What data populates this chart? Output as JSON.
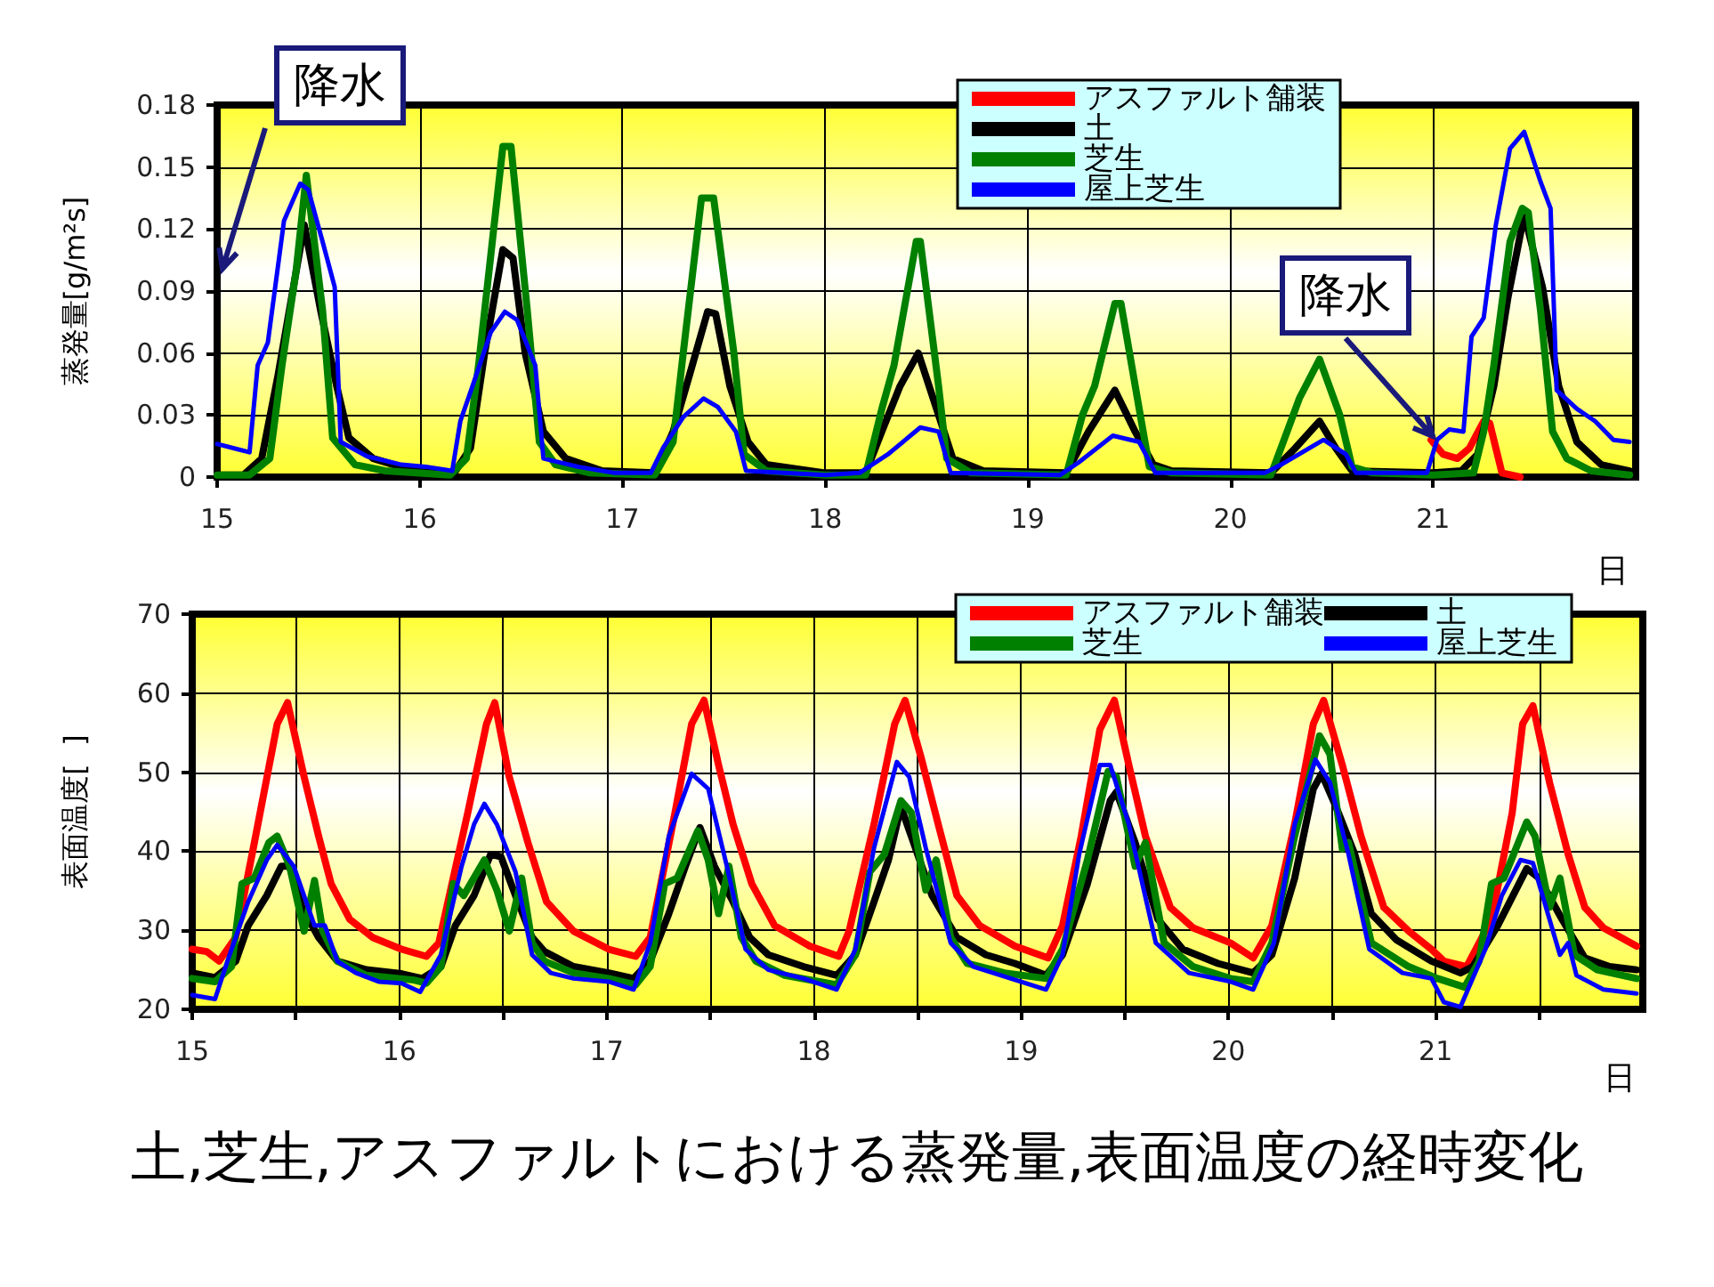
{
  "chart_data": [
    {
      "type": "line",
      "ylabel": "蒸発量[g/m²s]",
      "xlabel": "日",
      "xlim": [
        15,
        22
      ],
      "xticks": [
        15,
        16,
        17,
        18,
        19,
        20,
        21
      ],
      "ylim": [
        0,
        0.18
      ],
      "yticks": [
        0,
        0.03,
        0.06,
        0.09,
        0.12,
        0.15,
        0.18
      ],
      "grid": true,
      "legend": "top right",
      "marker": "none",
      "annotations": [
        "降水",
        {
          "text": "降水",
          "x": 21,
          "y": 0.02
        }
      ],
      "series": [
        {
          "name": "アスファルト舗装",
          "color": "#ff0000",
          "x": [
            20.99,
            21.05,
            21.12,
            21.18,
            21.25,
            21.28,
            21.34,
            21.43
          ],
          "values": [
            0.018,
            0.011,
            0.009,
            0.014,
            0.027,
            0.026,
            0.002,
            0
          ]
        },
        {
          "name": "土",
          "color": "#000000",
          "x": [
            15,
            15.13,
            15.22,
            15.3,
            15.43,
            15.51,
            15.59,
            15.65,
            15.77,
            15.97,
            16.17,
            16.25,
            16.32,
            16.41,
            16.46,
            16.52,
            16.61,
            16.72,
            16.9,
            17.16,
            17.25,
            17.33,
            17.42,
            17.46,
            17.53,
            17.62,
            17.71,
            18.0,
            18.2,
            18.28,
            18.37,
            18.46,
            18.55,
            18.63,
            18.78,
            19.19,
            19.3,
            19.43,
            19.53,
            19.62,
            19.71,
            20.2,
            20.32,
            20.44,
            20.52,
            20.6,
            21.0,
            21.14,
            21.22,
            21.3,
            21.37,
            21.45,
            21.54,
            21.62,
            21.71,
            21.83,
            21.97
          ],
          "values": [
            0.001,
            0.001,
            0.009,
            0.049,
            0.122,
            0.081,
            0.044,
            0.019,
            0.009,
            0.003,
            0.002,
            0.014,
            0.06,
            0.11,
            0.106,
            0.06,
            0.022,
            0.009,
            0.003,
            0.002,
            0.022,
            0.049,
            0.08,
            0.079,
            0.044,
            0.017,
            0.006,
            0.002,
            0.002,
            0.022,
            0.044,
            0.06,
            0.033,
            0.009,
            0.003,
            0.002,
            0.022,
            0.042,
            0.022,
            0.006,
            0.003,
            0.002,
            0.014,
            0.027,
            0.014,
            0.003,
            0.002,
            0.003,
            0.011,
            0.044,
            0.087,
            0.127,
            0.092,
            0.044,
            0.017,
            0.006,
            0.003
          ]
        },
        {
          "name": "芝生",
          "color": "#008000",
          "x": [
            15,
            15.16,
            15.26,
            15.32,
            15.39,
            15.44,
            15.52,
            15.57,
            15.68,
            15.83,
            16.15,
            16.23,
            16.29,
            16.41,
            16.45,
            16.53,
            16.59,
            16.67,
            16.84,
            17.16,
            17.25,
            17.3,
            17.39,
            17.45,
            17.55,
            17.6,
            17.71,
            18.0,
            18.2,
            18.28,
            18.34,
            18.45,
            18.47,
            18.56,
            18.6,
            18.72,
            19.19,
            19.27,
            19.33,
            19.43,
            19.46,
            19.55,
            19.6,
            19.71,
            20.2,
            20.28,
            20.34,
            20.44,
            20.54,
            20.6,
            20.7,
            21.0,
            21.2,
            21.25,
            21.3,
            21.38,
            21.44,
            21.47,
            21.53,
            21.59,
            21.66,
            21.78,
            21.97
          ],
          "values": [
            0.001,
            0.001,
            0.009,
            0.054,
            0.1,
            0.146,
            0.081,
            0.019,
            0.006,
            0.003,
            0.001,
            0.009,
            0.054,
            0.16,
            0.16,
            0.081,
            0.017,
            0.006,
            0.002,
            0.001,
            0.017,
            0.06,
            0.135,
            0.135,
            0.06,
            0.011,
            0.003,
            0.001,
            0.001,
            0.033,
            0.054,
            0.114,
            0.114,
            0.044,
            0.009,
            0.002,
            0.001,
            0.03,
            0.044,
            0.084,
            0.084,
            0.033,
            0.005,
            0.002,
            0.001,
            0.022,
            0.038,
            0.057,
            0.03,
            0.005,
            0.002,
            0.001,
            0.002,
            0.022,
            0.054,
            0.114,
            0.13,
            0.128,
            0.081,
            0.022,
            0.009,
            0.003,
            0.001
          ]
        },
        {
          "name": "屋上芝生",
          "color": "#0000ff",
          "x": [
            15,
            15.16,
            15.2,
            15.25,
            15.33,
            15.41,
            15.45,
            15.52,
            15.58,
            15.61,
            15.74,
            15.91,
            16.03,
            16.16,
            16.2,
            16.26,
            16.35,
            16.42,
            16.48,
            16.57,
            16.61,
            16.78,
            16.96,
            17.14,
            17.2,
            17.3,
            17.4,
            17.47,
            17.56,
            17.61,
            18.0,
            18.17,
            18.31,
            18.47,
            18.56,
            18.62,
            19.16,
            19.25,
            19.42,
            19.55,
            19.63,
            20.17,
            20.25,
            20.46,
            20.57,
            20.62,
            20.97,
            21.02,
            21.08,
            21.15,
            21.19,
            21.25,
            21.31,
            21.38,
            21.45,
            21.53,
            21.58,
            21.61,
            21.71,
            21.8,
            21.89,
            21.97
          ],
          "values": [
            0.016,
            0.012,
            0.054,
            0.065,
            0.124,
            0.142,
            0.139,
            0.114,
            0.092,
            0.017,
            0.01,
            0.006,
            0.005,
            0.003,
            0.027,
            0.044,
            0.07,
            0.08,
            0.076,
            0.054,
            0.009,
            0.005,
            0.002,
            0.002,
            0.014,
            0.029,
            0.038,
            0.034,
            0.022,
            0.003,
            0.001,
            0.002,
            0.011,
            0.024,
            0.022,
            0.002,
            0.001,
            0.007,
            0.02,
            0.017,
            0.002,
            0.002,
            0.006,
            0.018,
            0.011,
            0.002,
            0.002,
            0.018,
            0.023,
            0.022,
            0.068,
            0.077,
            0.122,
            0.159,
            0.167,
            0.143,
            0.13,
            0.042,
            0.033,
            0.027,
            0.018,
            0.017
          ]
        }
      ]
    },
    {
      "type": "line",
      "title": "土,芝生,アスファルトにおける蒸発量,表面温度の経時変化",
      "ylabel": "表面温度[  ]",
      "xlabel": "日",
      "xlim": [
        15,
        22
      ],
      "xticks": [
        15,
        {
          "value": 15.5,
          "label": null
        },
        16,
        {
          "value": 16.5,
          "label": null
        },
        17,
        {
          "value": 17.5,
          "label": null
        },
        18,
        {
          "value": 18.5,
          "label": null
        },
        19,
        {
          "value": 19.5,
          "label": null
        },
        20,
        {
          "value": 20.5,
          "label": null
        },
        21,
        {
          "value": 21.5,
          "label": null
        }
      ],
      "ylim": [
        20,
        70
      ],
      "yticks": [
        20,
        30,
        40,
        50,
        60,
        70
      ],
      "grid": true,
      "legend": "top right",
      "marker": "none",
      "series": [
        {
          "name": "アスファルト舗装",
          "color": "#ff0000",
          "x": [
            15,
            15.07,
            15.13,
            15.21,
            15.3,
            15.41,
            15.46,
            15.54,
            15.61,
            15.67,
            15.76,
            15.87,
            16.01,
            16.13,
            16.19,
            16.33,
            16.42,
            16.46,
            16.53,
            16.62,
            16.71,
            16.84,
            17.01,
            17.14,
            17.21,
            17.33,
            17.41,
            17.47,
            17.54,
            17.61,
            17.7,
            17.81,
            17.98,
            18.12,
            18.17,
            18.29,
            18.39,
            18.44,
            18.52,
            18.6,
            18.69,
            18.8,
            18.97,
            19.13,
            19.2,
            19.29,
            19.38,
            19.45,
            19.52,
            19.6,
            19.72,
            19.83,
            20.01,
            20.12,
            20.21,
            20.32,
            20.41,
            20.46,
            20.55,
            20.64,
            20.75,
            20.87,
            20.98,
            21.04,
            21.15,
            21.27,
            21.37,
            21.42,
            21.47,
            21.55,
            21.64,
            21.72,
            21.81,
            21.97
          ],
          "values": [
            27.6,
            27.3,
            26.1,
            29.1,
            41.1,
            56.1,
            58.8,
            49.4,
            41.9,
            35.9,
            31.4,
            29.1,
            27.6,
            26.7,
            28.4,
            44.9,
            56.1,
            58.8,
            49.4,
            41.1,
            33.6,
            29.9,
            27.6,
            26.7,
            29.1,
            44.9,
            56.1,
            59.1,
            50.9,
            43.4,
            35.9,
            30.6,
            28.0,
            26.7,
            29.9,
            43.4,
            56.1,
            59.1,
            51.6,
            43.4,
            34.4,
            30.6,
            28.0,
            26.5,
            30.6,
            41.9,
            55.4,
            59.1,
            50.9,
            41.9,
            32.9,
            30.3,
            28.4,
            26.5,
            30.6,
            43.4,
            56.1,
            59.1,
            50.9,
            41.9,
            32.9,
            29.9,
            27.6,
            26.1,
            25.4,
            31.4,
            44.9,
            56.1,
            58.4,
            48.7,
            39.6,
            32.9,
            30.3,
            28.0
          ]
        },
        {
          "name": "土",
          "color": "#000000",
          "x": [
            15,
            15.11,
            15.21,
            15.27,
            15.36,
            15.43,
            15.47,
            15.53,
            15.61,
            15.7,
            15.84,
            16.01,
            16.11,
            16.2,
            16.27,
            16.36,
            16.44,
            16.49,
            16.56,
            16.64,
            16.7,
            16.84,
            17.01,
            17.13,
            17.21,
            17.3,
            17.38,
            17.45,
            17.52,
            17.61,
            17.69,
            17.78,
            17.95,
            18.11,
            18.2,
            18.29,
            18.36,
            18.42,
            18.47,
            18.57,
            18.69,
            18.83,
            18.97,
            19.12,
            19.2,
            19.32,
            19.43,
            19.46,
            19.55,
            19.66,
            19.78,
            19.95,
            20.12,
            20.21,
            20.32,
            20.41,
            20.45,
            20.52,
            20.61,
            20.69,
            20.81,
            20.98,
            21.12,
            21.18,
            21.3,
            21.44,
            21.5,
            21.61,
            21.72,
            21.84,
            21.97
          ],
          "values": [
            24.6,
            24.0,
            26.1,
            30.6,
            34.4,
            38.1,
            38.1,
            32.9,
            29.1,
            26.1,
            25.0,
            24.5,
            23.9,
            25.4,
            30.6,
            34.4,
            39.6,
            39.3,
            34.4,
            29.1,
            27.3,
            25.4,
            24.6,
            23.9,
            26.1,
            32.1,
            38.1,
            43.0,
            38.1,
            33.6,
            29.1,
            26.9,
            25.4,
            24.3,
            26.9,
            33.6,
            38.9,
            45.6,
            41.9,
            34.4,
            29.1,
            26.9,
            25.8,
            24.3,
            26.9,
            35.9,
            46.4,
            47.5,
            41.1,
            31.4,
            27.6,
            25.8,
            24.6,
            26.9,
            36.6,
            47.9,
            49.8,
            45.6,
            39.6,
            32.1,
            28.8,
            26.1,
            24.6,
            25.4,
            30.6,
            37.8,
            36.6,
            31.4,
            26.5,
            25.4,
            25.0
          ]
        },
        {
          "name": "芝生",
          "color": "#008000",
          "x": [
            15,
            15.11,
            15.19,
            15.24,
            15.3,
            15.37,
            15.41,
            15.47,
            15.54,
            15.59,
            15.63,
            15.7,
            15.84,
            16.07,
            16.13,
            16.2,
            16.26,
            16.31,
            16.41,
            16.47,
            16.53,
            16.59,
            16.64,
            16.7,
            16.84,
            17.01,
            17.14,
            17.21,
            17.28,
            17.34,
            17.44,
            17.49,
            17.54,
            17.59,
            17.65,
            17.72,
            17.86,
            18.11,
            18.2,
            18.27,
            18.34,
            18.42,
            18.47,
            18.54,
            18.59,
            18.66,
            18.74,
            18.92,
            19.12,
            19.2,
            19.32,
            19.42,
            19.46,
            19.55,
            19.6,
            19.69,
            19.83,
            20.01,
            20.12,
            20.21,
            20.32,
            20.44,
            20.49,
            20.55,
            20.58,
            20.69,
            20.87,
            21.01,
            21.14,
            21.21,
            21.27,
            21.33,
            21.44,
            21.48,
            21.55,
            21.6,
            21.67,
            21.78,
            21.97
          ],
          "values": [
            23.9,
            23.5,
            25.4,
            35.9,
            36.6,
            41.1,
            41.9,
            38.1,
            29.9,
            36.3,
            29.9,
            26.1,
            24.3,
            23.7,
            23.3,
            25.4,
            35.9,
            34.4,
            38.9,
            35.1,
            29.9,
            36.6,
            28.4,
            26.1,
            24.6,
            23.9,
            23.1,
            25.4,
            35.9,
            36.6,
            42.6,
            38.9,
            32.1,
            38.1,
            29.1,
            26.1,
            24.3,
            23.1,
            26.9,
            37.4,
            39.6,
            46.4,
            44.9,
            35.1,
            38.9,
            29.1,
            25.8,
            24.6,
            23.9,
            27.6,
            38.9,
            50.1,
            49.4,
            38.1,
            41.1,
            28.4,
            25.4,
            23.9,
            23.5,
            28.4,
            41.9,
            54.6,
            52.3,
            40.3,
            41.1,
            28.4,
            25.4,
            23.9,
            22.8,
            26.1,
            35.9,
            36.6,
            43.7,
            41.9,
            32.9,
            36.6,
            26.9,
            25.0,
            23.9
          ]
        },
        {
          "name": "屋上芝生",
          "color": "#0000ff",
          "x": [
            15,
            15.11,
            15.17,
            15.27,
            15.36,
            15.41,
            15.49,
            15.59,
            15.64,
            15.7,
            15.79,
            15.9,
            16.01,
            16.1,
            16.2,
            16.3,
            16.36,
            16.41,
            16.47,
            16.56,
            16.64,
            16.73,
            16.84,
            17.01,
            17.13,
            17.21,
            17.3,
            17.41,
            17.49,
            17.58,
            17.67,
            17.78,
            17.95,
            18.11,
            18.2,
            18.29,
            18.4,
            18.46,
            18.54,
            18.66,
            18.77,
            18.95,
            19.12,
            19.2,
            19.28,
            19.38,
            19.43,
            19.52,
            19.65,
            19.81,
            20.01,
            20.12,
            20.22,
            20.32,
            20.42,
            20.49,
            20.58,
            20.68,
            20.84,
            20.98,
            21.04,
            21.12,
            21.24,
            21.32,
            21.41,
            21.47,
            21.6,
            21.64,
            21.68,
            21.81,
            21.97
          ],
          "values": [
            21.8,
            21.3,
            26.1,
            33.6,
            38.9,
            40.8,
            38.1,
            30.6,
            30.6,
            26.1,
            24.6,
            23.5,
            23.3,
            22.2,
            26.9,
            38.1,
            43.4,
            46.0,
            43.4,
            37.4,
            26.9,
            24.6,
            23.9,
            23.5,
            22.5,
            28.4,
            41.9,
            49.8,
            47.9,
            38.1,
            27.6,
            25.0,
            23.9,
            22.5,
            27.6,
            40.4,
            51.3,
            49.4,
            40.4,
            28.4,
            25.4,
            23.9,
            22.5,
            26.9,
            39.6,
            50.9,
            50.9,
            43.4,
            28.4,
            24.6,
            23.5,
            22.5,
            28.4,
            43.4,
            51.6,
            48.7,
            39.6,
            27.6,
            24.6,
            23.9,
            20.9,
            20.3,
            27.6,
            34.4,
            38.9,
            38.5,
            26.9,
            28.4,
            24.3,
            22.5,
            22.0
          ]
        }
      ]
    }
  ]
}
